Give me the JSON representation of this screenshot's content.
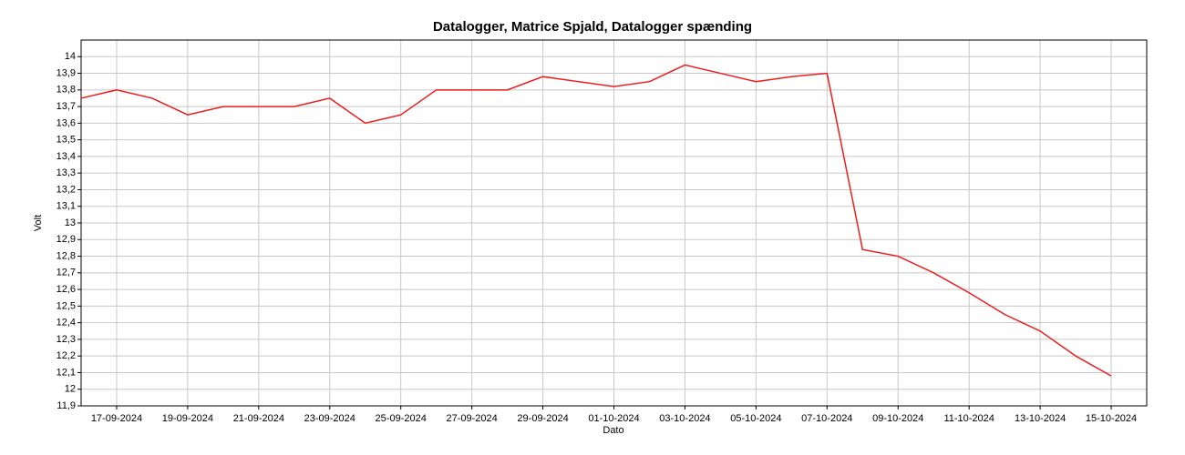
{
  "chart_data": {
    "type": "line",
    "title": "Datalogger, Matrice Spjald, Datalogger spænding",
    "x_label": "Dato",
    "y_label": "Volt",
    "x": [
      "2024-09-16",
      "2024-09-17",
      "2024-09-18",
      "2024-09-19",
      "2024-09-20",
      "2024-09-21",
      "2024-09-22",
      "2024-09-23",
      "2024-09-24",
      "2024-09-25",
      "2024-09-26",
      "2024-09-27",
      "2024-09-28",
      "2024-09-29",
      "2024-09-30",
      "2024-10-01",
      "2024-10-02",
      "2024-10-03",
      "2024-10-04",
      "2024-10-05",
      "2024-10-06",
      "2024-10-07",
      "2024-10-08",
      "2024-10-09",
      "2024-10-10",
      "2024-10-11",
      "2024-10-12",
      "2024-10-13",
      "2024-10-14",
      "2024-10-15"
    ],
    "series": [
      {
        "name": "Datalogger spænding",
        "color": "#ee1c1c",
        "values": [
          13.75,
          13.8,
          13.75,
          13.65,
          13.7,
          13.7,
          13.7,
          13.75,
          13.6,
          13.65,
          13.8,
          13.8,
          13.8,
          13.88,
          13.85,
          13.82,
          13.85,
          13.95,
          13.9,
          13.85,
          13.88,
          13.9,
          12.84,
          12.8,
          12.7,
          12.58,
          12.45,
          12.35,
          12.2,
          12.08
        ]
      }
    ],
    "xlim": [
      "2024-09-16",
      "2024-10-16"
    ],
    "xticks": [
      {
        "value": "2024-09-17",
        "label": "17-09-2024"
      },
      {
        "value": "2024-09-19",
        "label": "19-09-2024"
      },
      {
        "value": "2024-09-21",
        "label": "21-09-2024"
      },
      {
        "value": "2024-09-23",
        "label": "23-09-2024"
      },
      {
        "value": "2024-09-25",
        "label": "25-09-2024"
      },
      {
        "value": "2024-09-27",
        "label": "27-09-2024"
      },
      {
        "value": "2024-09-29",
        "label": "29-09-2024"
      },
      {
        "value": "2024-10-01",
        "label": "01-10-2024"
      },
      {
        "value": "2024-10-03",
        "label": "03-10-2024"
      },
      {
        "value": "2024-10-05",
        "label": "05-10-2024"
      },
      {
        "value": "2024-10-07",
        "label": "07-10-2024"
      },
      {
        "value": "2024-10-09",
        "label": "09-10-2024"
      },
      {
        "value": "2024-10-11",
        "label": "11-10-2024"
      },
      {
        "value": "2024-10-13",
        "label": "13-10-2024"
      },
      {
        "value": "2024-10-15",
        "label": "15-10-2024"
      }
    ],
    "ylim": [
      11.9,
      14.1
    ],
    "yticks": [
      {
        "value": 11.9,
        "label": "11,9"
      },
      12,
      {
        "value": 12.1,
        "label": "12,1"
      },
      {
        "value": 12.2,
        "label": "12,2"
      },
      {
        "value": 12.3,
        "label": "12,3"
      },
      {
        "value": 12.4,
        "label": "12,4"
      },
      {
        "value": 12.5,
        "label": "12,5"
      },
      {
        "value": 12.6,
        "label": "12,6"
      },
      {
        "value": 12.7,
        "label": "12,7"
      },
      {
        "value": 12.8,
        "label": "12,8"
      },
      {
        "value": 12.9,
        "label": "12,9"
      },
      13,
      {
        "value": 13.1,
        "label": "13,1"
      },
      {
        "value": 13.2,
        "label": "13,2"
      },
      {
        "value": 13.3,
        "label": "13,3"
      },
      {
        "value": 13.4,
        "label": "13,4"
      },
      {
        "value": 13.5,
        "label": "13,5"
      },
      {
        "value": 13.6,
        "label": "13,6"
      },
      {
        "value": 13.7,
        "label": "13,7"
      },
      {
        "value": 13.8,
        "label": "13,8"
      },
      {
        "value": 13.9,
        "label": "13,9"
      },
      14
    ],
    "grid": true
  }
}
